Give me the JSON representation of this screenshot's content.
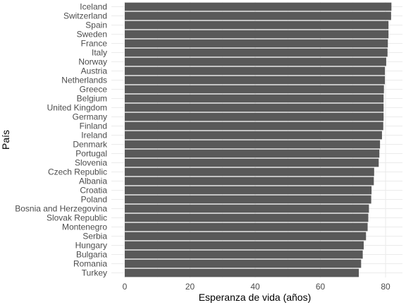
{
  "chart_data": {
    "type": "bar",
    "orientation": "horizontal",
    "xlabel": "Esperanza de vida (años)",
    "ylabel": "País",
    "xlim": [
      0,
      82
    ],
    "xticks": [
      0,
      20,
      40,
      60,
      80
    ],
    "grid": true,
    "bar_color": "#595959",
    "grid_color": "#ebebeb",
    "categories": [
      "Iceland",
      "Switzerland",
      "Spain",
      "Sweden",
      "France",
      "Italy",
      "Norway",
      "Austria",
      "Netherlands",
      "Greece",
      "Belgium",
      "United Kingdom",
      "Germany",
      "Finland",
      "Ireland",
      "Denmark",
      "Portugal",
      "Slovenia",
      "Czech Republic",
      "Albania",
      "Croatia",
      "Poland",
      "Bosnia and Herzegovina",
      "Slovak Republic",
      "Montenegro",
      "Serbia",
      "Hungary",
      "Bulgaria",
      "Romania",
      "Turkey"
    ],
    "values": [
      81.8,
      81.7,
      80.9,
      80.9,
      80.7,
      80.6,
      80.2,
      79.8,
      79.8,
      79.5,
      79.4,
      79.4,
      79.4,
      79.3,
      78.9,
      78.3,
      78.1,
      77.9,
      76.5,
      76.4,
      75.7,
      75.6,
      74.9,
      74.7,
      74.5,
      74.0,
      73.3,
      73.0,
      72.5,
      71.8
    ]
  }
}
